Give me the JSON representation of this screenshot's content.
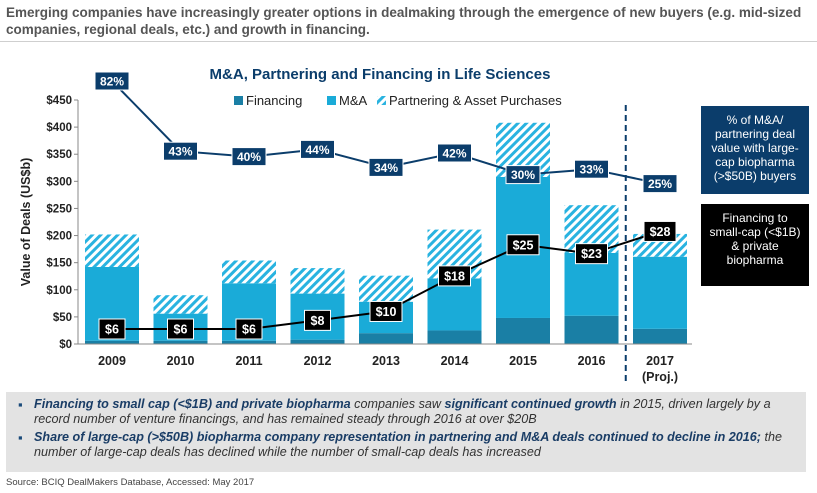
{
  "headline": "Emerging companies have increasingly greater options in dealmaking through the emergence of new buyers (e.g. mid-sized companies, regional deals, etc.) and growth in financing.",
  "colors": {
    "financing": "#1a7fa5",
    "ma": "#1aabd8",
    "partnering": "#29b3e0",
    "pct_label_bg": "#0b3d6b",
    "fin_label_bg": "#000000",
    "axis": "#888888"
  },
  "chart_data": {
    "type": "bar",
    "title": "M&A, Partnering and Financing in Life Sciences",
    "ylabel": "Value of Deals (US$b)",
    "ylim": [
      0,
      450
    ],
    "yticks": [
      "$0",
      "$50",
      "$100",
      "$150",
      "$200",
      "$250",
      "$300",
      "$350",
      "$400",
      "$450"
    ],
    "categories": [
      "2009",
      "2010",
      "2011",
      "2012",
      "2013",
      "2014",
      "2015",
      "2016",
      "2017"
    ],
    "category_sublabels": [
      "",
      "",
      "",
      "",
      "",
      "",
      "",
      "",
      "(Proj.)"
    ],
    "legend": [
      "Financing",
      "M&A",
      "Partnering & Asset Purchases"
    ],
    "series": [
      {
        "name": "Financing",
        "values": [
          6,
          6,
          6,
          8,
          20,
          25,
          48,
          52,
          28
        ]
      },
      {
        "name": "M&A",
        "values": [
          136,
          50,
          106,
          85,
          58,
          96,
          260,
          116,
          133
        ]
      },
      {
        "name": "Partnering & Asset Purchases",
        "values": [
          60,
          34,
          42,
          47,
          48,
          90,
          100,
          88,
          42
        ]
      }
    ],
    "lines": [
      {
        "name": "% of M&A/partnering deal value with large-cap biopharma (>$50B) buyers",
        "values": [
          82,
          43,
          40,
          44,
          34,
          42,
          30,
          33,
          25
        ],
        "labels": [
          "82%",
          "43%",
          "40%",
          "44%",
          "34%",
          "42%",
          "30%",
          "33%",
          "25%"
        ]
      },
      {
        "name": "Financing to small-cap (<$1B) & private biopharma",
        "values": [
          6,
          6,
          6,
          8,
          10,
          18,
          25,
          23,
          28
        ],
        "labels": [
          "$6",
          "$6",
          "$6",
          "$8",
          "$10",
          "$18",
          "$25",
          "$23",
          "$28"
        ]
      }
    ],
    "projection_divider_after": "2016"
  },
  "callouts": {
    "pct": "% of M&A/ partnering deal value with large-cap biopharma (>$50B) buyers",
    "fin": "Financing to small-cap (<$1B) & private biopharma"
  },
  "notes": [
    {
      "bold": "Financing to small cap (<$1B) and private biopharma",
      "t1": " companies saw ",
      "bold2": "significant continued growth",
      "t2": " in 2015, driven largely by a record number of venture financings, and has remained steady through 2016 at over $20B"
    },
    {
      "bold": "Share of large-cap (>$50B) biopharma company  representation in partnering and M&A deals continued to decline in 2016;",
      "t1": " the number of large-cap deals has declined while the number of small-cap deals has increased",
      "bold2": "",
      "t2": ""
    }
  ],
  "source": "Source: BCIQ DealMakers Database, Accessed: May 2017"
}
